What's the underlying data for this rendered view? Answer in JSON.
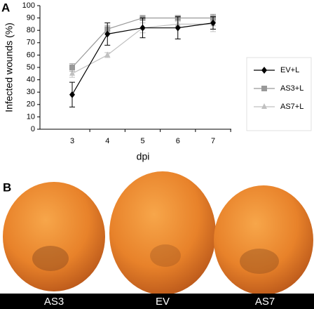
{
  "chart_data": {
    "type": "line",
    "panel_label": "A",
    "y_label": "Infected wounds (%)",
    "x_label": "dpi",
    "categories": [
      "3",
      "4",
      "5",
      "6",
      "7"
    ],
    "ylim": [
      0,
      100
    ],
    "yticks": [
      0,
      10,
      20,
      30,
      40,
      50,
      60,
      70,
      80,
      90,
      100
    ],
    "legend_position": "right",
    "series": [
      {
        "name": "EV+L",
        "color": "#000000",
        "marker": "diamond",
        "values": [
          28,
          77,
          82,
          82,
          86
        ],
        "errors": [
          10,
          9,
          8,
          9,
          5
        ]
      },
      {
        "name": "AS3+L",
        "color": "#999999",
        "marker": "square",
        "values": [
          50,
          81,
          90,
          90,
          90
        ],
        "errors": [
          3,
          3,
          2,
          2,
          3
        ]
      },
      {
        "name": "AS7+L",
        "color": "#c0c0c0",
        "marker": "triangle",
        "values": [
          45,
          60,
          82,
          85,
          85
        ],
        "errors": [
          3,
          2,
          4,
          2,
          6
        ]
      }
    ]
  },
  "photos": {
    "panel_label": "B",
    "captions": [
      "AS3",
      "EV",
      "AS7"
    ]
  }
}
